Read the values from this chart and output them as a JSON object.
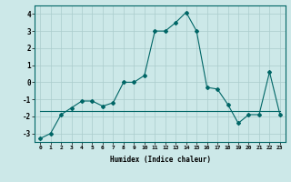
{
  "xlabel": "Humidex (Indice chaleur)",
  "ylabel": "",
  "bg_color": "#cce8e8",
  "grid_color": "#aacccc",
  "line_color": "#006666",
  "x_humidex": [
    0,
    1,
    2,
    3,
    4,
    5,
    6,
    7,
    8,
    9,
    10,
    11,
    12,
    13,
    14,
    15,
    16,
    17,
    18,
    19,
    20,
    21,
    22,
    23
  ],
  "y_main": [
    -3.3,
    -3.0,
    -1.9,
    -1.5,
    -1.1,
    -1.1,
    -1.4,
    -1.2,
    0.0,
    0.0,
    0.4,
    3.0,
    3.0,
    3.5,
    4.1,
    3.0,
    -0.3,
    -0.4,
    -1.3,
    -2.4,
    -1.9,
    -1.9,
    0.6,
    -1.9
  ],
  "y_flat": [
    -1.7,
    -1.7,
    -1.7,
    -1.7,
    -1.7,
    -1.7,
    -1.7,
    -1.7,
    -1.7,
    -1.7,
    -1.7,
    -1.7,
    -1.7,
    -1.7,
    -1.7,
    -1.7,
    -1.7,
    -1.7,
    -1.7,
    -1.7,
    -1.7,
    -1.7,
    -1.7,
    -1.7
  ],
  "ylim": [
    -3.5,
    4.5
  ],
  "yticks": [
    -3,
    -2,
    -1,
    0,
    1,
    2,
    3,
    4
  ],
  "xticks": [
    0,
    1,
    2,
    3,
    4,
    5,
    6,
    7,
    8,
    9,
    10,
    11,
    12,
    13,
    14,
    15,
    16,
    17,
    18,
    19,
    20,
    21,
    22,
    23
  ],
  "xlim": [
    -0.5,
    23.5
  ]
}
